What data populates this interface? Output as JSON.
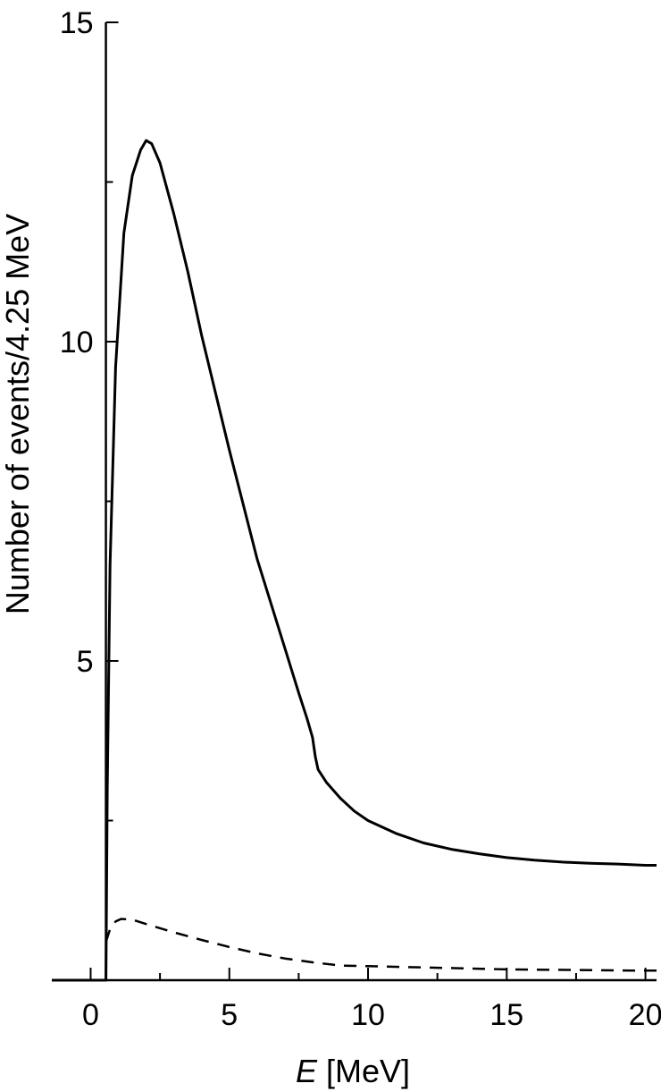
{
  "chart_data": {
    "type": "line",
    "title": "",
    "xlabel_italic": "E",
    "xlabel_rest": " [MeV]",
    "ylabel": "Number of events/4.25 MeV",
    "xlim": [
      -1.4,
      20.4
    ],
    "ylim": [
      0,
      15
    ],
    "xticks": [
      0,
      5,
      10,
      15,
      20
    ],
    "yticks": [
      5,
      10,
      15
    ],
    "grid": false,
    "series": [
      {
        "style": "solid",
        "x": [
          -1.4,
          0.55,
          0.6,
          0.7,
          0.9,
          1.2,
          1.5,
          1.8,
          2.0,
          2.2,
          2.5,
          3.0,
          3.5,
          4.0,
          5.0,
          6.0,
          7.0,
          7.5,
          7.8,
          8.0,
          8.1,
          8.2,
          8.5,
          9.0,
          9.5,
          10.0,
          11.0,
          12.0,
          13.0,
          14.0,
          15.0,
          16.0,
          17.0,
          18.0,
          19.0,
          20.0,
          20.4
        ],
        "y": [
          0.0,
          0.0,
          3.0,
          6.5,
          9.6,
          11.7,
          12.6,
          13.0,
          13.15,
          13.1,
          12.8,
          12.0,
          11.1,
          10.1,
          8.3,
          6.6,
          5.2,
          4.5,
          4.1,
          3.8,
          3.5,
          3.3,
          3.1,
          2.85,
          2.65,
          2.5,
          2.3,
          2.15,
          2.05,
          1.98,
          1.92,
          1.88,
          1.85,
          1.83,
          1.82,
          1.8,
          1.8
        ]
      },
      {
        "style": "dashed",
        "x": [
          0.55,
          0.7,
          0.9,
          1.1,
          1.5,
          2.0,
          3.0,
          4.0,
          5.0,
          6.0,
          7.0,
          8.0,
          9.0,
          10.0,
          12.0,
          15.0,
          20.0,
          20.4
        ],
        "y": [
          0.6,
          0.8,
          0.92,
          0.96,
          0.95,
          0.88,
          0.75,
          0.63,
          0.52,
          0.42,
          0.34,
          0.28,
          0.23,
          0.22,
          0.2,
          0.17,
          0.15,
          0.15
        ]
      }
    ]
  }
}
